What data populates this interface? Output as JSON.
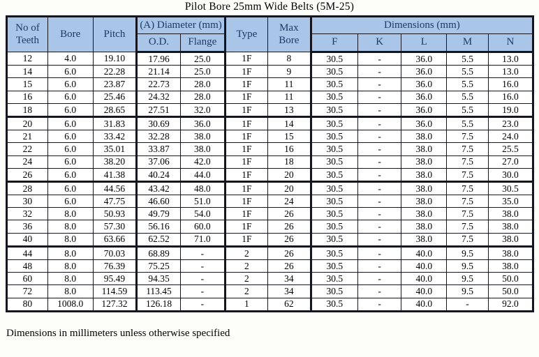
{
  "title": "Pilot Bore 25mm Wide Belts (5M-25)",
  "footer_note": "Dimensions in millimeters unless otherwise specified",
  "colors": {
    "header_bg": "#a9c5e8",
    "header_text": "#1f3864",
    "border": "#15151f",
    "body_text": "#000000"
  },
  "header": {
    "no_of_teeth": "No of Teeth",
    "bore": "Bore",
    "pitch": "Pitch",
    "diameter_group": "(A) Diameter (mm)",
    "od": "O.D.",
    "flange": "Flange",
    "type": "Type",
    "max_bore": "Max Bore",
    "dimensions_group": "Dimensions (mm)",
    "f": "F",
    "k": "K",
    "l": "L",
    "m": "M",
    "n": "N"
  },
  "chart_data": {
    "type": "table",
    "title": "Pilot Bore 25mm Wide Belts (5M-25)",
    "columns": [
      "No of Teeth",
      "Bore",
      "Pitch",
      "O.D.",
      "Flange",
      "Type",
      "Max Bore",
      "F",
      "K",
      "L",
      "M",
      "N"
    ],
    "rows": [
      [
        "12",
        "4.0",
        "19.10",
        "17.96",
        "25.0",
        "1F",
        "8",
        "30.5",
        "-",
        "36.0",
        "5.5",
        "13.0"
      ],
      [
        "14",
        "6.0",
        "22.28",
        "21.14",
        "25.0",
        "1F",
        "9",
        "30.5",
        "-",
        "36.0",
        "5.5",
        "13.0"
      ],
      [
        "15",
        "6.0",
        "23.87",
        "22.73",
        "28.0",
        "1F",
        "11",
        "30.5",
        "-",
        "36.0",
        "5.5",
        "16.0"
      ],
      [
        "16",
        "6.0",
        "25.46",
        "24.32",
        "28.0",
        "1F",
        "11",
        "30.5",
        "-",
        "36.0",
        "5.5",
        "16.0"
      ],
      [
        "18",
        "6.0",
        "28.65",
        "27.51",
        "32.0",
        "1F",
        "13",
        "30.5",
        "-",
        "36.0",
        "5.5",
        "19.0"
      ],
      [
        "20",
        "6.0",
        "31.83",
        "30.69",
        "36.0",
        "1F",
        "14",
        "30.5",
        "-",
        "36.0",
        "5.5",
        "23.0"
      ],
      [
        "21",
        "6.0",
        "33.42",
        "32.28",
        "38.0",
        "1F",
        "15",
        "30.5",
        "-",
        "38.0",
        "7.5",
        "24.0"
      ],
      [
        "22",
        "6.0",
        "35.01",
        "33.87",
        "38.0",
        "1F",
        "16",
        "30.5",
        "-",
        "38.0",
        "7.5",
        "25.5"
      ],
      [
        "24",
        "6.0",
        "38.20",
        "37.06",
        "42.0",
        "1F",
        "18",
        "30.5",
        "-",
        "38.0",
        "7.5",
        "27.0"
      ],
      [
        "26",
        "6.0",
        "41.38",
        "40.24",
        "44.0",
        "1F",
        "20",
        "30.5",
        "-",
        "38.0",
        "7.5",
        "30.0"
      ],
      [
        "28",
        "6.0",
        "44.56",
        "43.42",
        "48.0",
        "1F",
        "20",
        "30.5",
        "-",
        "38.0",
        "7.5",
        "30.5"
      ],
      [
        "30",
        "6.0",
        "47.75",
        "46.60",
        "51.0",
        "1F",
        "24",
        "30.5",
        "-",
        "38.0",
        "7.5",
        "35.0"
      ],
      [
        "32",
        "8.0",
        "50.93",
        "49.79",
        "54.0",
        "1F",
        "26",
        "30.5",
        "-",
        "38.0",
        "7.5",
        "38.0"
      ],
      [
        "36",
        "8.0",
        "57.30",
        "56.16",
        "60.0",
        "1F",
        "26",
        "30.5",
        "-",
        "38.0",
        "7.5",
        "38.0"
      ],
      [
        "40",
        "8.0",
        "63.66",
        "62.52",
        "71.0",
        "1F",
        "26",
        "30.5",
        "-",
        "38.0",
        "7.5",
        "38.0"
      ],
      [
        "44",
        "8.0",
        "70.03",
        "68.89",
        "-",
        "2",
        "26",
        "30.5",
        "-",
        "40.0",
        "9.5",
        "38.0"
      ],
      [
        "48",
        "8.0",
        "76.39",
        "75.25",
        "-",
        "2",
        "26",
        "30.5",
        "-",
        "40.0",
        "9.5",
        "38.0"
      ],
      [
        "60",
        "8.0",
        "95.49",
        "94.35",
        "-",
        "2",
        "34",
        "30.5",
        "-",
        "40.0",
        "9.5",
        "50.0"
      ],
      [
        "72",
        "8.0",
        "114.59",
        "113.45",
        "-",
        "2",
        "34",
        "30.5",
        "-",
        "40.0",
        "9.5",
        "50.0"
      ],
      [
        "80",
        "1008.0",
        "127.32",
        "126.18",
        "-",
        "1",
        "62",
        "30.5",
        "-",
        "40.0",
        "-",
        "92.0"
      ]
    ]
  }
}
